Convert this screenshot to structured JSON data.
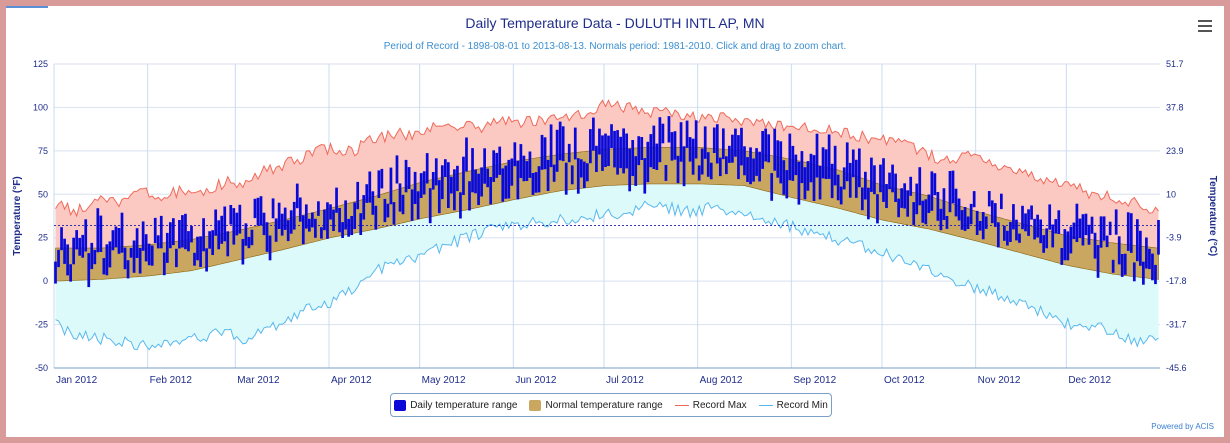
{
  "title": "Daily Temperature Data - DULUTH INTL AP, MN",
  "subtitle": "Period of Record - 1898-08-01 to 2013-08-13. Normals period: 1981-2010. Click and drag to zoom chart.",
  "powered_by": "Powered by ACIS",
  "colors": {
    "daily": "#0a0ad8",
    "normal": "#c9a760",
    "normal_edge": "#8a6410",
    "record_max_line": "#f06a5a",
    "record_max_fill": "#fbc8c2",
    "record_min_line": "#5ab8ee",
    "record_min_fill": "#dcfafa",
    "freeze_line": "#1a1ab0",
    "axis_text": "#1f2d8a"
  },
  "chart_data": {
    "type": "area",
    "year": 2012,
    "x_labels": [
      "Jan 2012",
      "Feb 2012",
      "Mar 2012",
      "Apr 2012",
      "May 2012",
      "Jun 2012",
      "Jul 2012",
      "Aug 2012",
      "Sep 2012",
      "Oct 2012",
      "Nov 2012",
      "Dec 2012"
    ],
    "month_starts": [
      "2012-01-01",
      "2012-02-01",
      "2012-03-01",
      "2012-04-01",
      "2012-05-01",
      "2012-06-01",
      "2012-07-01",
      "2012-08-01",
      "2012-09-01",
      "2012-10-01",
      "2012-11-01",
      "2012-12-01"
    ],
    "y_left": {
      "label": "Temperature (°F)",
      "ticks": [
        125,
        100,
        75,
        50,
        25,
        0,
        -25,
        -50
      ],
      "range": [
        -50,
        125
      ]
    },
    "y_right": {
      "label": "Temperature (°C)",
      "ticks": [
        "51.7",
        "37.8",
        "23.9",
        "10",
        "-3.9",
        "-17.8",
        "-31.7",
        "-45.6"
      ]
    },
    "reference_line_F": 32,
    "legend": [
      "Daily temperature range",
      "Normal temperature range",
      "Record Max",
      "Record Min"
    ],
    "normal_high": {
      "dates": [
        "2012-01-01",
        "2012-01-16",
        "2012-02-01",
        "2012-02-15",
        "2012-03-01",
        "2012-03-16",
        "2012-04-01",
        "2012-04-16",
        "2012-05-01",
        "2012-05-16",
        "2012-06-01",
        "2012-06-16",
        "2012-07-01",
        "2012-07-16",
        "2012-08-01",
        "2012-08-16",
        "2012-09-01",
        "2012-09-16",
        "2012-10-01",
        "2012-10-16",
        "2012-11-01",
        "2012-11-16",
        "2012-12-01",
        "2012-12-16",
        "2012-12-31"
      ],
      "values": [
        19,
        19,
        21,
        24,
        29,
        35,
        42,
        49,
        57,
        63,
        69,
        73,
        76,
        77,
        77,
        75,
        70,
        64,
        55,
        49,
        40,
        33,
        26,
        22,
        19
      ]
    },
    "normal_low": {
      "dates": [
        "2012-01-01",
        "2012-01-16",
        "2012-02-01",
        "2012-02-15",
        "2012-03-01",
        "2012-03-16",
        "2012-04-01",
        "2012-04-16",
        "2012-05-01",
        "2012-05-16",
        "2012-06-01",
        "2012-06-16",
        "2012-07-01",
        "2012-07-16",
        "2012-08-01",
        "2012-08-16",
        "2012-09-01",
        "2012-09-16",
        "2012-10-01",
        "2012-10-16",
        "2012-11-01",
        "2012-11-16",
        "2012-12-01",
        "2012-12-16",
        "2012-12-31"
      ],
      "values": [
        0,
        1,
        3,
        6,
        12,
        18,
        25,
        30,
        36,
        41,
        47,
        52,
        55,
        56,
        56,
        55,
        48,
        42,
        35,
        30,
        23,
        16,
        9,
        4,
        1
      ]
    },
    "record_max": {
      "dates": [
        "2012-01-01",
        "2012-01-08",
        "2012-01-15",
        "2012-01-22",
        "2012-01-29",
        "2012-02-05",
        "2012-02-12",
        "2012-02-19",
        "2012-02-26",
        "2012-03-04",
        "2012-03-11",
        "2012-03-18",
        "2012-03-25",
        "2012-04-01",
        "2012-04-08",
        "2012-04-15",
        "2012-04-22",
        "2012-04-29",
        "2012-05-06",
        "2012-05-13",
        "2012-05-20",
        "2012-05-27",
        "2012-06-03",
        "2012-06-10",
        "2012-06-17",
        "2012-06-24",
        "2012-07-01",
        "2012-07-08",
        "2012-07-15",
        "2012-07-22",
        "2012-07-29",
        "2012-08-05",
        "2012-08-12",
        "2012-08-19",
        "2012-08-26",
        "2012-09-02",
        "2012-09-09",
        "2012-09-16",
        "2012-09-23",
        "2012-09-30",
        "2012-10-07",
        "2012-10-14",
        "2012-10-21",
        "2012-10-28",
        "2012-11-04",
        "2012-11-11",
        "2012-11-18",
        "2012-11-25",
        "2012-12-02",
        "2012-12-09",
        "2012-12-16",
        "2012-12-23",
        "2012-12-31"
      ],
      "values": [
        44,
        40,
        47,
        44,
        52,
        48,
        53,
        50,
        57,
        57,
        64,
        68,
        73,
        77,
        74,
        82,
        85,
        84,
        89,
        90,
        88,
        92,
        92,
        93,
        94,
        96,
        102,
        100,
        98,
        97,
        94,
        96,
        92,
        92,
        90,
        90,
        87,
        86,
        83,
        82,
        80,
        74,
        70,
        72,
        70,
        65,
        60,
        58,
        55,
        50,
        48,
        45,
        40
      ]
    },
    "record_min": {
      "dates": [
        "2012-01-01",
        "2012-01-08",
        "2012-01-15",
        "2012-01-22",
        "2012-01-29",
        "2012-02-05",
        "2012-02-12",
        "2012-02-19",
        "2012-02-26",
        "2012-03-04",
        "2012-03-11",
        "2012-03-18",
        "2012-03-25",
        "2012-04-01",
        "2012-04-08",
        "2012-04-15",
        "2012-04-22",
        "2012-04-29",
        "2012-05-06",
        "2012-05-13",
        "2012-05-20",
        "2012-05-27",
        "2012-06-03",
        "2012-06-10",
        "2012-06-17",
        "2012-06-24",
        "2012-07-01",
        "2012-07-08",
        "2012-07-15",
        "2012-07-22",
        "2012-07-29",
        "2012-08-05",
        "2012-08-12",
        "2012-08-19",
        "2012-08-26",
        "2012-09-02",
        "2012-09-09",
        "2012-09-16",
        "2012-09-23",
        "2012-09-30",
        "2012-10-07",
        "2012-10-14",
        "2012-10-21",
        "2012-10-28",
        "2012-11-04",
        "2012-11-11",
        "2012-11-18",
        "2012-11-25",
        "2012-12-02",
        "2012-12-09",
        "2012-12-16",
        "2012-12-23",
        "2012-12-31"
      ],
      "values": [
        -25,
        -31,
        -33,
        -34,
        -37,
        -37,
        -35,
        -32,
        -30,
        -33,
        -28,
        -24,
        -15,
        -12,
        -6,
        5,
        10,
        14,
        19,
        23,
        27,
        31,
        33,
        34,
        35,
        37,
        38,
        40,
        43,
        42,
        40,
        42,
        40,
        38,
        35,
        31,
        27,
        24,
        20,
        17,
        12,
        8,
        2,
        -2,
        -5,
        -10,
        -15,
        -20,
        -26,
        -25,
        -30,
        -35,
        -31
      ]
    },
    "daily_range_note": "One vertical bar per day of 2012 spanning the observed low to high temperature (366 bars).",
    "daily_range_generator": "seasonal-noise"
  }
}
